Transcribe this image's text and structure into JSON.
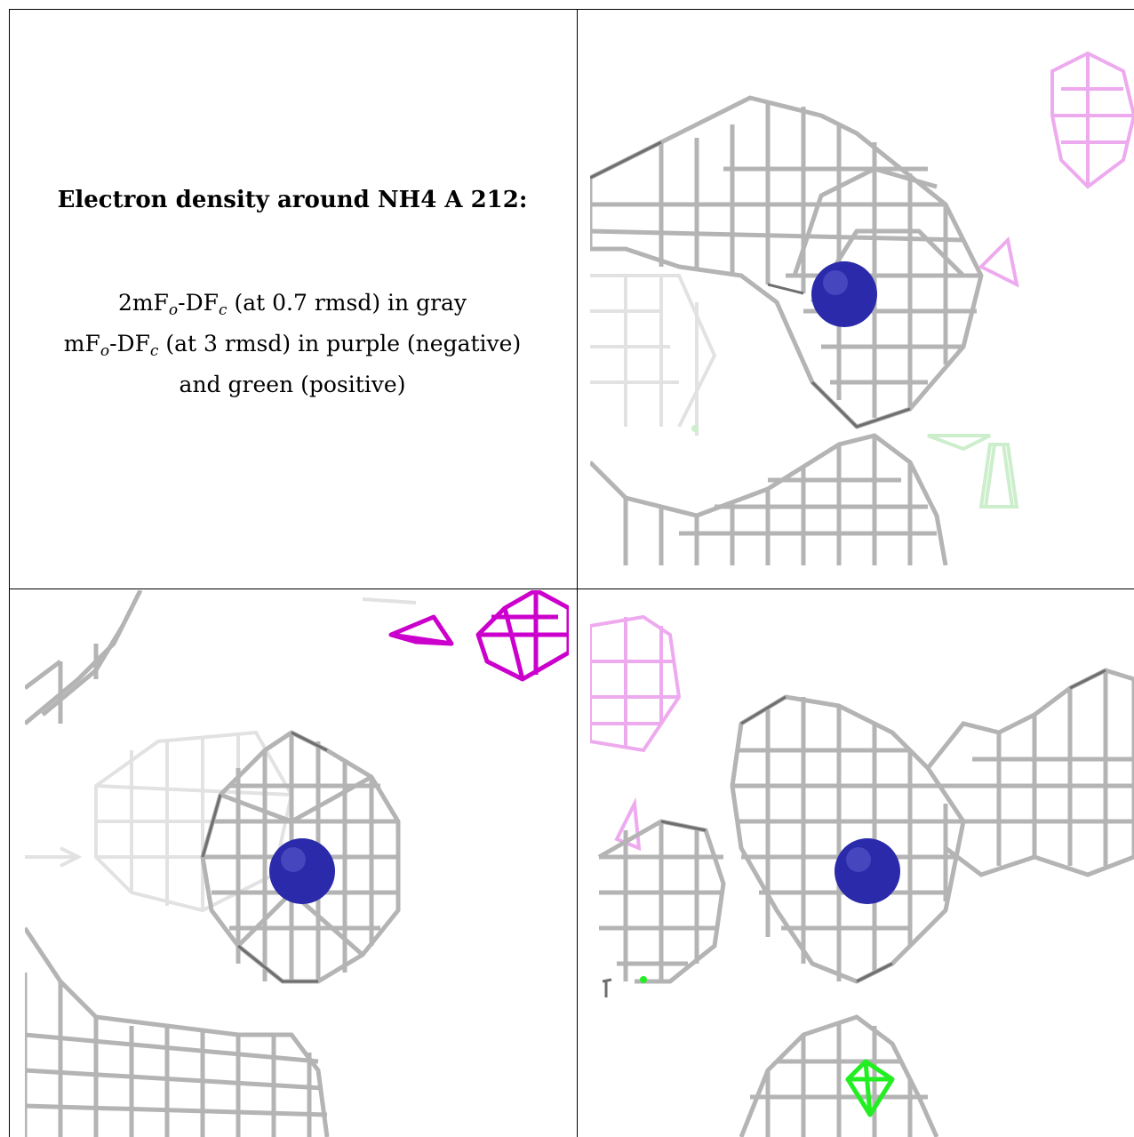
{
  "caption": {
    "title": "Electron density around NH4 A 212:",
    "line1_a": "2mF",
    "line1_sub1": "o",
    "line1_b": "-DF",
    "line1_sub2": "c",
    "line1_c": " (at 0.7 rmsd) in gray",
    "line2_a": "mF",
    "line2_sub1": "o",
    "line2_b": "-DF",
    "line2_sub2": "c",
    "line2_c": " (at 3 rmsd) in purple (negative)",
    "line3": "and green (positive)"
  },
  "colors": {
    "mesh_gray": "#b4b4b4",
    "mesh_dark": "#6e6e6e",
    "mesh_faint": "#e2e2e2",
    "negative_purple": "#cc00cc",
    "negative_pale": "#eeaaee",
    "positive_green": "#22ee22",
    "positive_pale": "#cceecc",
    "atom_blue": "#2a2aaa"
  },
  "views": [
    {
      "name": "view-top-right"
    },
    {
      "name": "view-bottom-left"
    },
    {
      "name": "view-bottom-right"
    }
  ]
}
